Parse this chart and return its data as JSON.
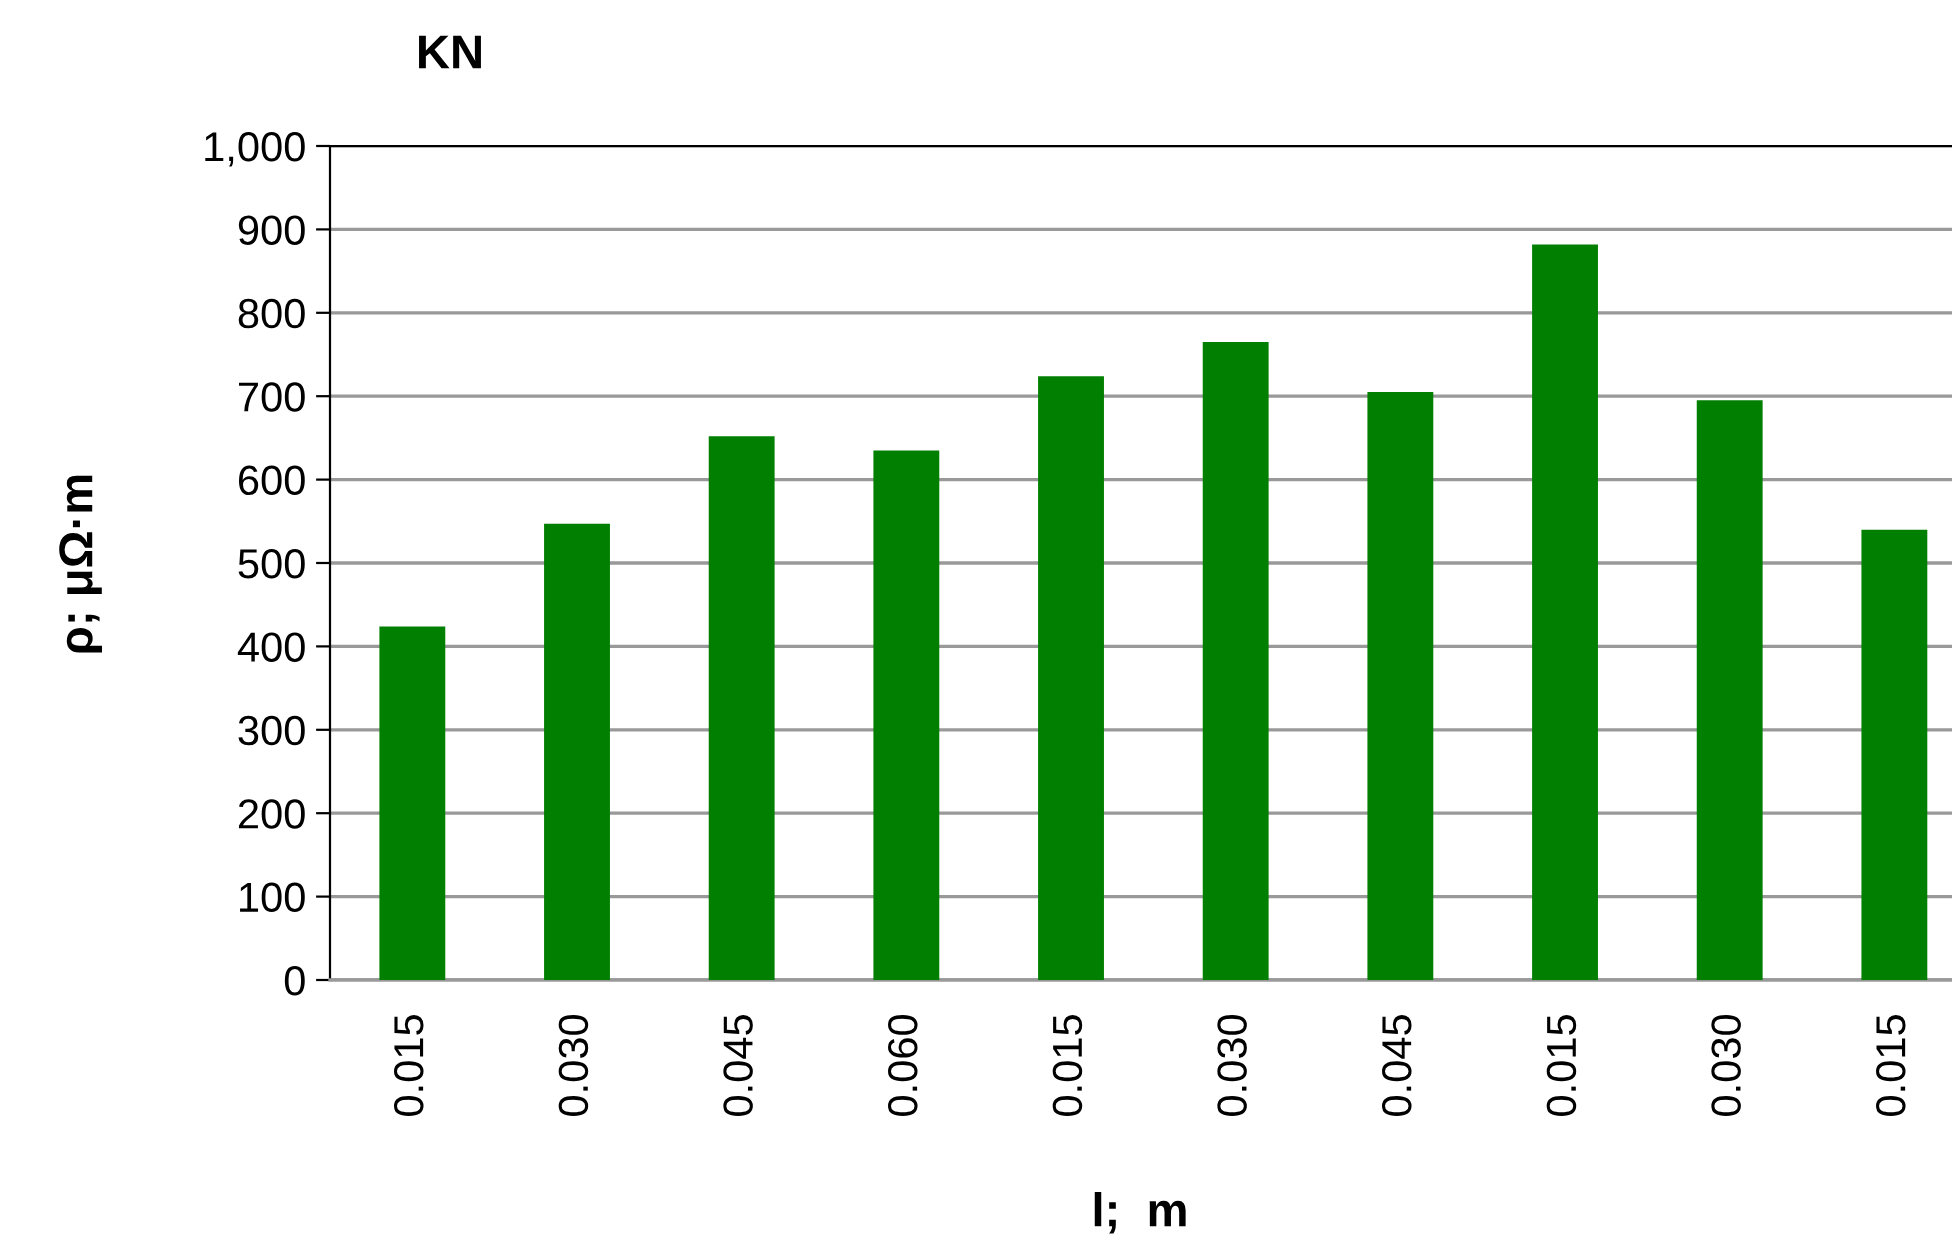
{
  "chart_data": {
    "type": "bar",
    "title": "KN",
    "xlabel": "l;  m",
    "ylabel": "ρ; μΩ·m",
    "categories": [
      "0.015",
      "0.030",
      "0.045",
      "0.060",
      "0.015",
      "0.030",
      "0.045",
      "0.015",
      "0.030",
      "0.015"
    ],
    "values": [
      424,
      547,
      652,
      635,
      724,
      765,
      705,
      882,
      695,
      540
    ],
    "color": "#007f00",
    "ylim": [
      0,
      1000
    ],
    "yticks": [
      0,
      100,
      200,
      300,
      400,
      500,
      600,
      700,
      800,
      900,
      {
        "value": 1000,
        "label": "1,000"
      }
    ],
    "grid": "y",
    "legend": false
  }
}
